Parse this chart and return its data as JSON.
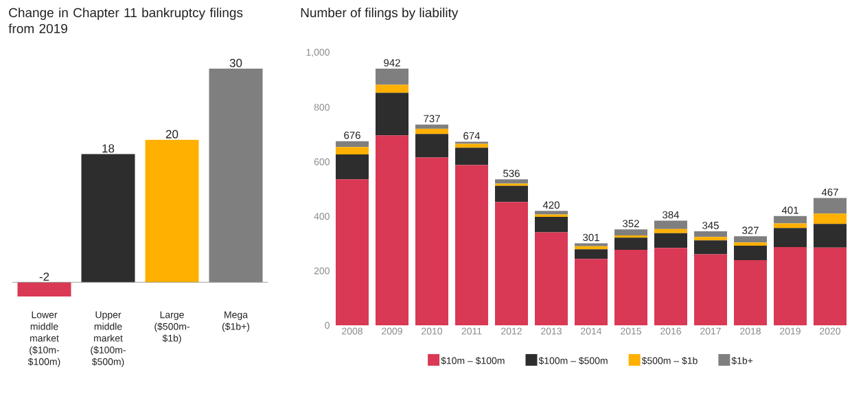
{
  "chart_data": [
    {
      "type": "bar",
      "title": "Change in Chapter 11 bankruptcy filings from 2019",
      "categories": [
        "Lower middle market ($10m-$100m)",
        "Upper middle market ($100m-$500m)",
        "Large ($500m-$1b)",
        "Mega ($1b+)"
      ],
      "values": [
        -2,
        18,
        20,
        30
      ],
      "colors": [
        "#d93954",
        "#2d2d2d",
        "#ffb000",
        "#7f7f7f"
      ],
      "data_labels": true
    },
    {
      "type": "bar",
      "stacked": true,
      "title": "Number of filings by liability",
      "categories": [
        "2008",
        "2009",
        "2010",
        "2011",
        "2012",
        "2013",
        "2014",
        "2015",
        "2016",
        "2017",
        "2018",
        "2019",
        "2020"
      ],
      "series": [
        {
          "name": "$10m – $100m",
          "color": "#d93954",
          "values": [
            536,
            697,
            616,
            588,
            453,
            341,
            244,
            277,
            284,
            261,
            239,
            287,
            285
          ]
        },
        {
          "name": "$100m – $500m",
          "color": "#2d2d2d",
          "values": [
            91,
            156,
            86,
            64,
            59,
            57,
            35,
            45,
            54,
            51,
            53,
            70,
            87
          ]
        },
        {
          "name": "$500m – $1b",
          "color": "#ffb000",
          "values": [
            27,
            30,
            19,
            14,
            8,
            9,
            11,
            8,
            15,
            12,
            12,
            17,
            38
          ]
        },
        {
          "name": "$1b+",
          "color": "#7f7f7f",
          "values": [
            22,
            59,
            16,
            8,
            16,
            13,
            11,
            22,
            31,
            21,
            23,
            27,
            57
          ]
        }
      ],
      "totals": [
        "676",
        "942",
        "737",
        "674",
        "536",
        "420",
        "301",
        "352",
        "384",
        "345",
        "327",
        "401",
        "467"
      ],
      "ylim": [
        0,
        1000
      ],
      "yticks": [
        0,
        200,
        400,
        600,
        800,
        {
          "value": 1000,
          "label": "1,000"
        }
      ],
      "legend": "bottom"
    }
  ]
}
